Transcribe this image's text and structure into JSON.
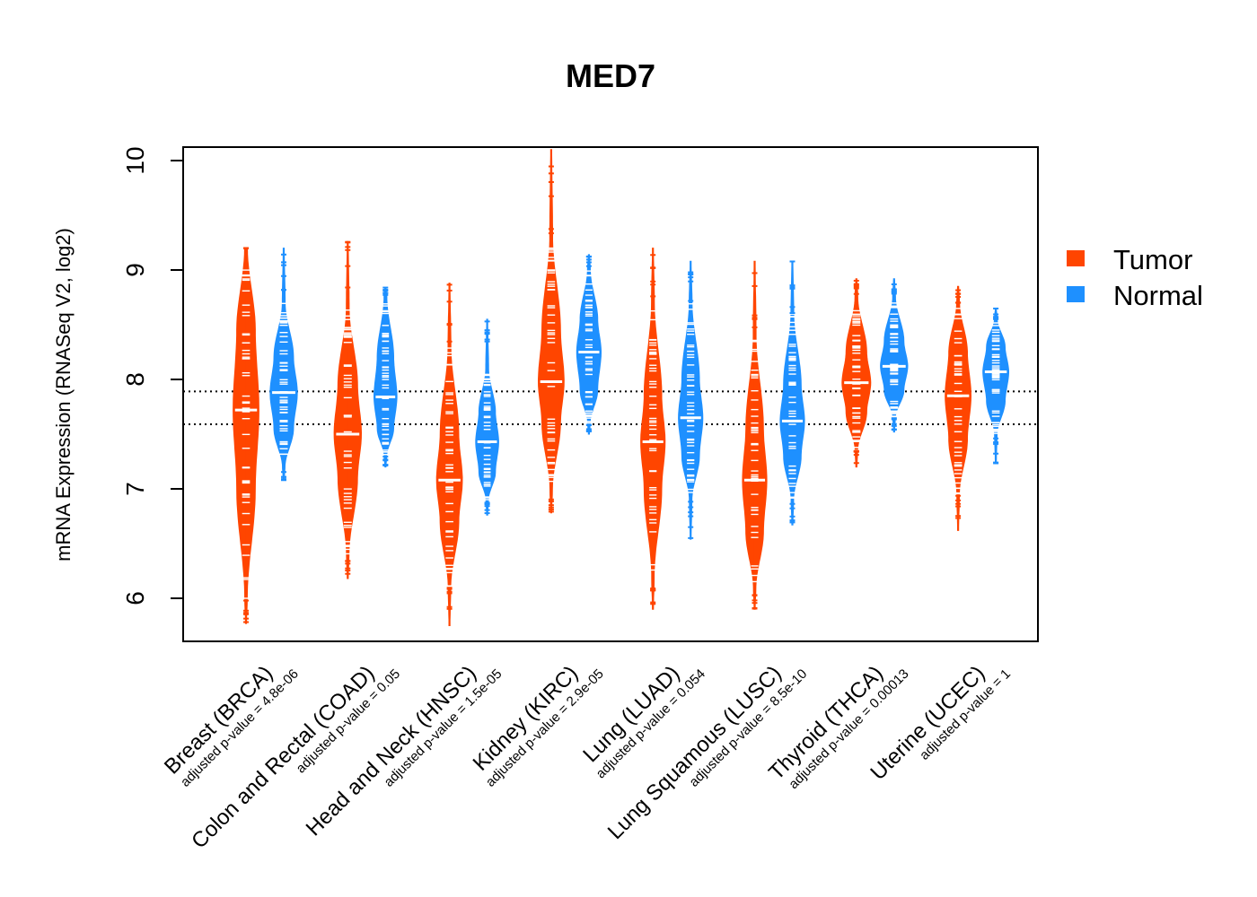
{
  "chart_data": {
    "type": "violin",
    "title": "MED7",
    "xlabel": "",
    "ylabel": "mRNA Expression (RNASeq V2, log2)",
    "ylim": [
      5.6,
      10.15
    ],
    "yticks": [
      6,
      7,
      8,
      9,
      10
    ],
    "reference_lines": [
      7.59,
      7.89
    ],
    "legend_position": "right",
    "colors": {
      "tumor": "#ff4500",
      "normal": "#1e90ff"
    },
    "legend": [
      {
        "label": "Tumor",
        "color": "#ff4500"
      },
      {
        "label": "Normal",
        "color": "#1e90ff"
      }
    ],
    "categories": [
      {
        "label": "Breast (BRCA)",
        "pvalue": "adjusted p-value = 4.8e-06",
        "tumor": {
          "median": 7.72,
          "min": 5.77,
          "max": 9.2,
          "q": [
            6.0,
            7.0,
            7.72,
            8.45,
            9.2
          ],
          "width": 0.9
        },
        "normal": {
          "median": 7.88,
          "min": 7.08,
          "max": 9.2,
          "q": [
            7.2,
            7.55,
            7.88,
            8.2,
            8.7
          ],
          "width": 0.95
        }
      },
      {
        "label": "Colon and Rectal (COAD)",
        "pvalue": "adjusted p-value = 0.05",
        "tumor": {
          "median": 7.5,
          "min": 6.18,
          "max": 9.26,
          "q": [
            6.4,
            7.1,
            7.5,
            7.95,
            8.65
          ],
          "width": 0.95
        },
        "normal": {
          "median": 7.84,
          "min": 7.2,
          "max": 8.84,
          "q": [
            7.3,
            7.55,
            7.84,
            8.2,
            8.75
          ],
          "width": 0.8
        }
      },
      {
        "label": "Head and Neck (HNSC)",
        "pvalue": "adjusted p-value = 1.5e-05",
        "tumor": {
          "median": 7.08,
          "min": 5.75,
          "max": 8.88,
          "q": [
            6.1,
            6.7,
            7.08,
            7.5,
            8.3
          ],
          "width": 0.9
        },
        "normal": {
          "median": 7.43,
          "min": 6.76,
          "max": 8.55,
          "q": [
            6.9,
            7.15,
            7.43,
            7.7,
            8.1
          ],
          "width": 0.8
        }
      },
      {
        "label": "Kidney (KIRC)",
        "pvalue": "adjusted p-value = 2.9e-05",
        "tumor": {
          "median": 7.98,
          "min": 6.78,
          "max": 10.1,
          "q": [
            7.0,
            7.6,
            7.98,
            8.45,
            9.3
          ],
          "width": 0.9
        },
        "normal": {
          "median": 8.25,
          "min": 7.5,
          "max": 9.14,
          "q": [
            7.6,
            7.9,
            8.25,
            8.55,
            9.0
          ],
          "width": 0.85
        }
      },
      {
        "label": "Lung (LUAD)",
        "pvalue": "adjusted p-value = 0.054",
        "tumor": {
          "median": 7.43,
          "min": 5.9,
          "max": 9.2,
          "q": [
            6.2,
            7.0,
            7.43,
            7.85,
            8.7
          ],
          "width": 0.85
        },
        "normal": {
          "median": 7.65,
          "min": 6.54,
          "max": 9.08,
          "q": [
            6.9,
            7.3,
            7.65,
            8.0,
            8.7
          ],
          "width": 0.85
        }
      },
      {
        "label": "Lung Squamous (LUSC)",
        "pvalue": "adjusted p-value = 8.5e-10",
        "tumor": {
          "median": 7.08,
          "min": 5.9,
          "max": 9.08,
          "q": [
            6.1,
            6.6,
            7.08,
            7.55,
            8.4
          ],
          "width": 0.85
        },
        "normal": {
          "median": 7.62,
          "min": 6.67,
          "max": 9.08,
          "q": [
            6.9,
            7.3,
            7.62,
            7.95,
            8.6
          ],
          "width": 0.85
        }
      },
      {
        "label": "Thyroid (THCA)",
        "pvalue": "adjusted p-value = 0.00013",
        "tumor": {
          "median": 7.97,
          "min": 7.2,
          "max": 8.92,
          "q": [
            7.35,
            7.7,
            7.97,
            8.25,
            8.75
          ],
          "width": 1.0
        },
        "normal": {
          "median": 8.12,
          "min": 7.52,
          "max": 8.92,
          "q": [
            7.65,
            7.9,
            8.12,
            8.35,
            8.75
          ],
          "width": 0.95
        }
      },
      {
        "label": "Uterine (UCEC)",
        "pvalue": "adjusted p-value = 1",
        "tumor": {
          "median": 7.85,
          "min": 6.62,
          "max": 8.85,
          "q": [
            6.95,
            7.45,
            7.85,
            8.25,
            8.7
          ],
          "width": 0.9
        },
        "normal": {
          "median": 8.07,
          "min": 7.23,
          "max": 8.65,
          "q": [
            7.5,
            7.8,
            8.07,
            8.3,
            8.55
          ],
          "width": 0.9
        }
      }
    ]
  }
}
